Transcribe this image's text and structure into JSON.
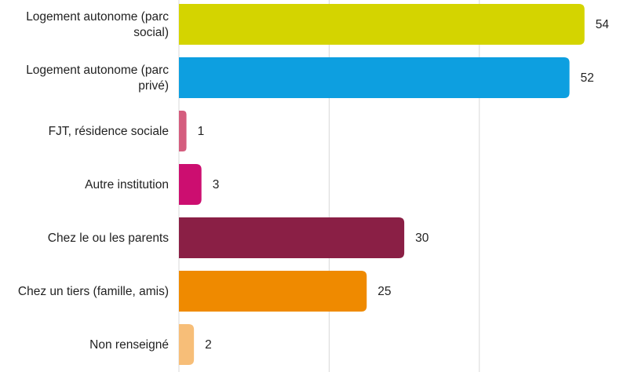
{
  "chart_data": {
    "type": "bar",
    "orientation": "horizontal",
    "categories": [
      [
        "Logement autonome (parc",
        "social)"
      ],
      [
        "Logement autonome (parc",
        "privé)"
      ],
      [
        "FJT, résidence sociale"
      ],
      [
        "Autre institution"
      ],
      [
        "Chez le ou les parents"
      ],
      [
        "Chez un tiers (famille, amis)"
      ],
      [
        "Non renseigné"
      ]
    ],
    "values": [
      54,
      52,
      1,
      3,
      30,
      25,
      2
    ],
    "colors": [
      "#d4d400",
      "#0d9fe0",
      "#d45d7e",
      "#cc0e70",
      "#8a1f45",
      "#ef8a00",
      "#f7be78"
    ],
    "xlim": [
      0,
      55
    ],
    "grid": true,
    "title": "",
    "xlabel": "",
    "ylabel": ""
  }
}
